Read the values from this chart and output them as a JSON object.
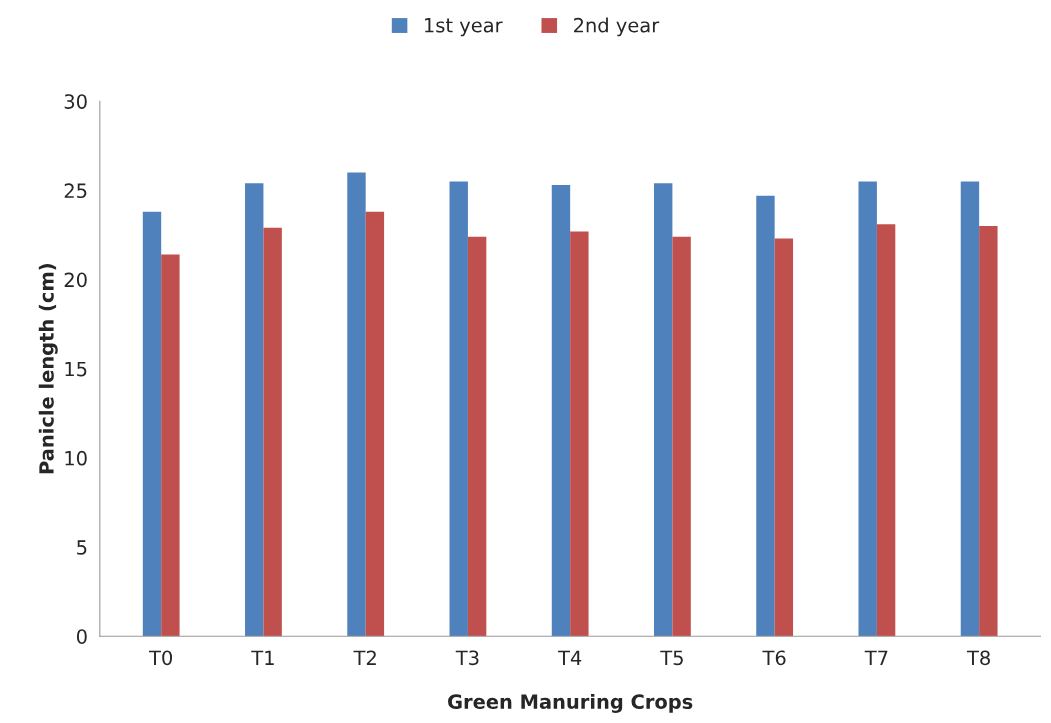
{
  "chart_data": {
    "type": "bar",
    "xlabel": "Green Manuring Crops",
    "ylabel": "Panicle length (cm)",
    "categories": [
      "T0",
      "T1",
      "T2",
      "T3",
      "T4",
      "T5",
      "T6",
      "T7",
      "T8"
    ],
    "series": [
      {
        "name": "1st year",
        "color": "#4f81bd",
        "values": [
          23.8,
          25.4,
          26.0,
          25.5,
          25.3,
          25.4,
          24.7,
          25.5,
          25.5
        ]
      },
      {
        "name": "2nd year",
        "color": "#c0504d",
        "values": [
          21.4,
          22.9,
          23.8,
          22.4,
          22.7,
          22.4,
          22.3,
          23.1,
          23.0
        ]
      }
    ],
    "ylim": [
      0,
      30
    ],
    "yticks": [
      0,
      5,
      10,
      15,
      20,
      25,
      30
    ],
    "grid": false,
    "legend": "top"
  }
}
